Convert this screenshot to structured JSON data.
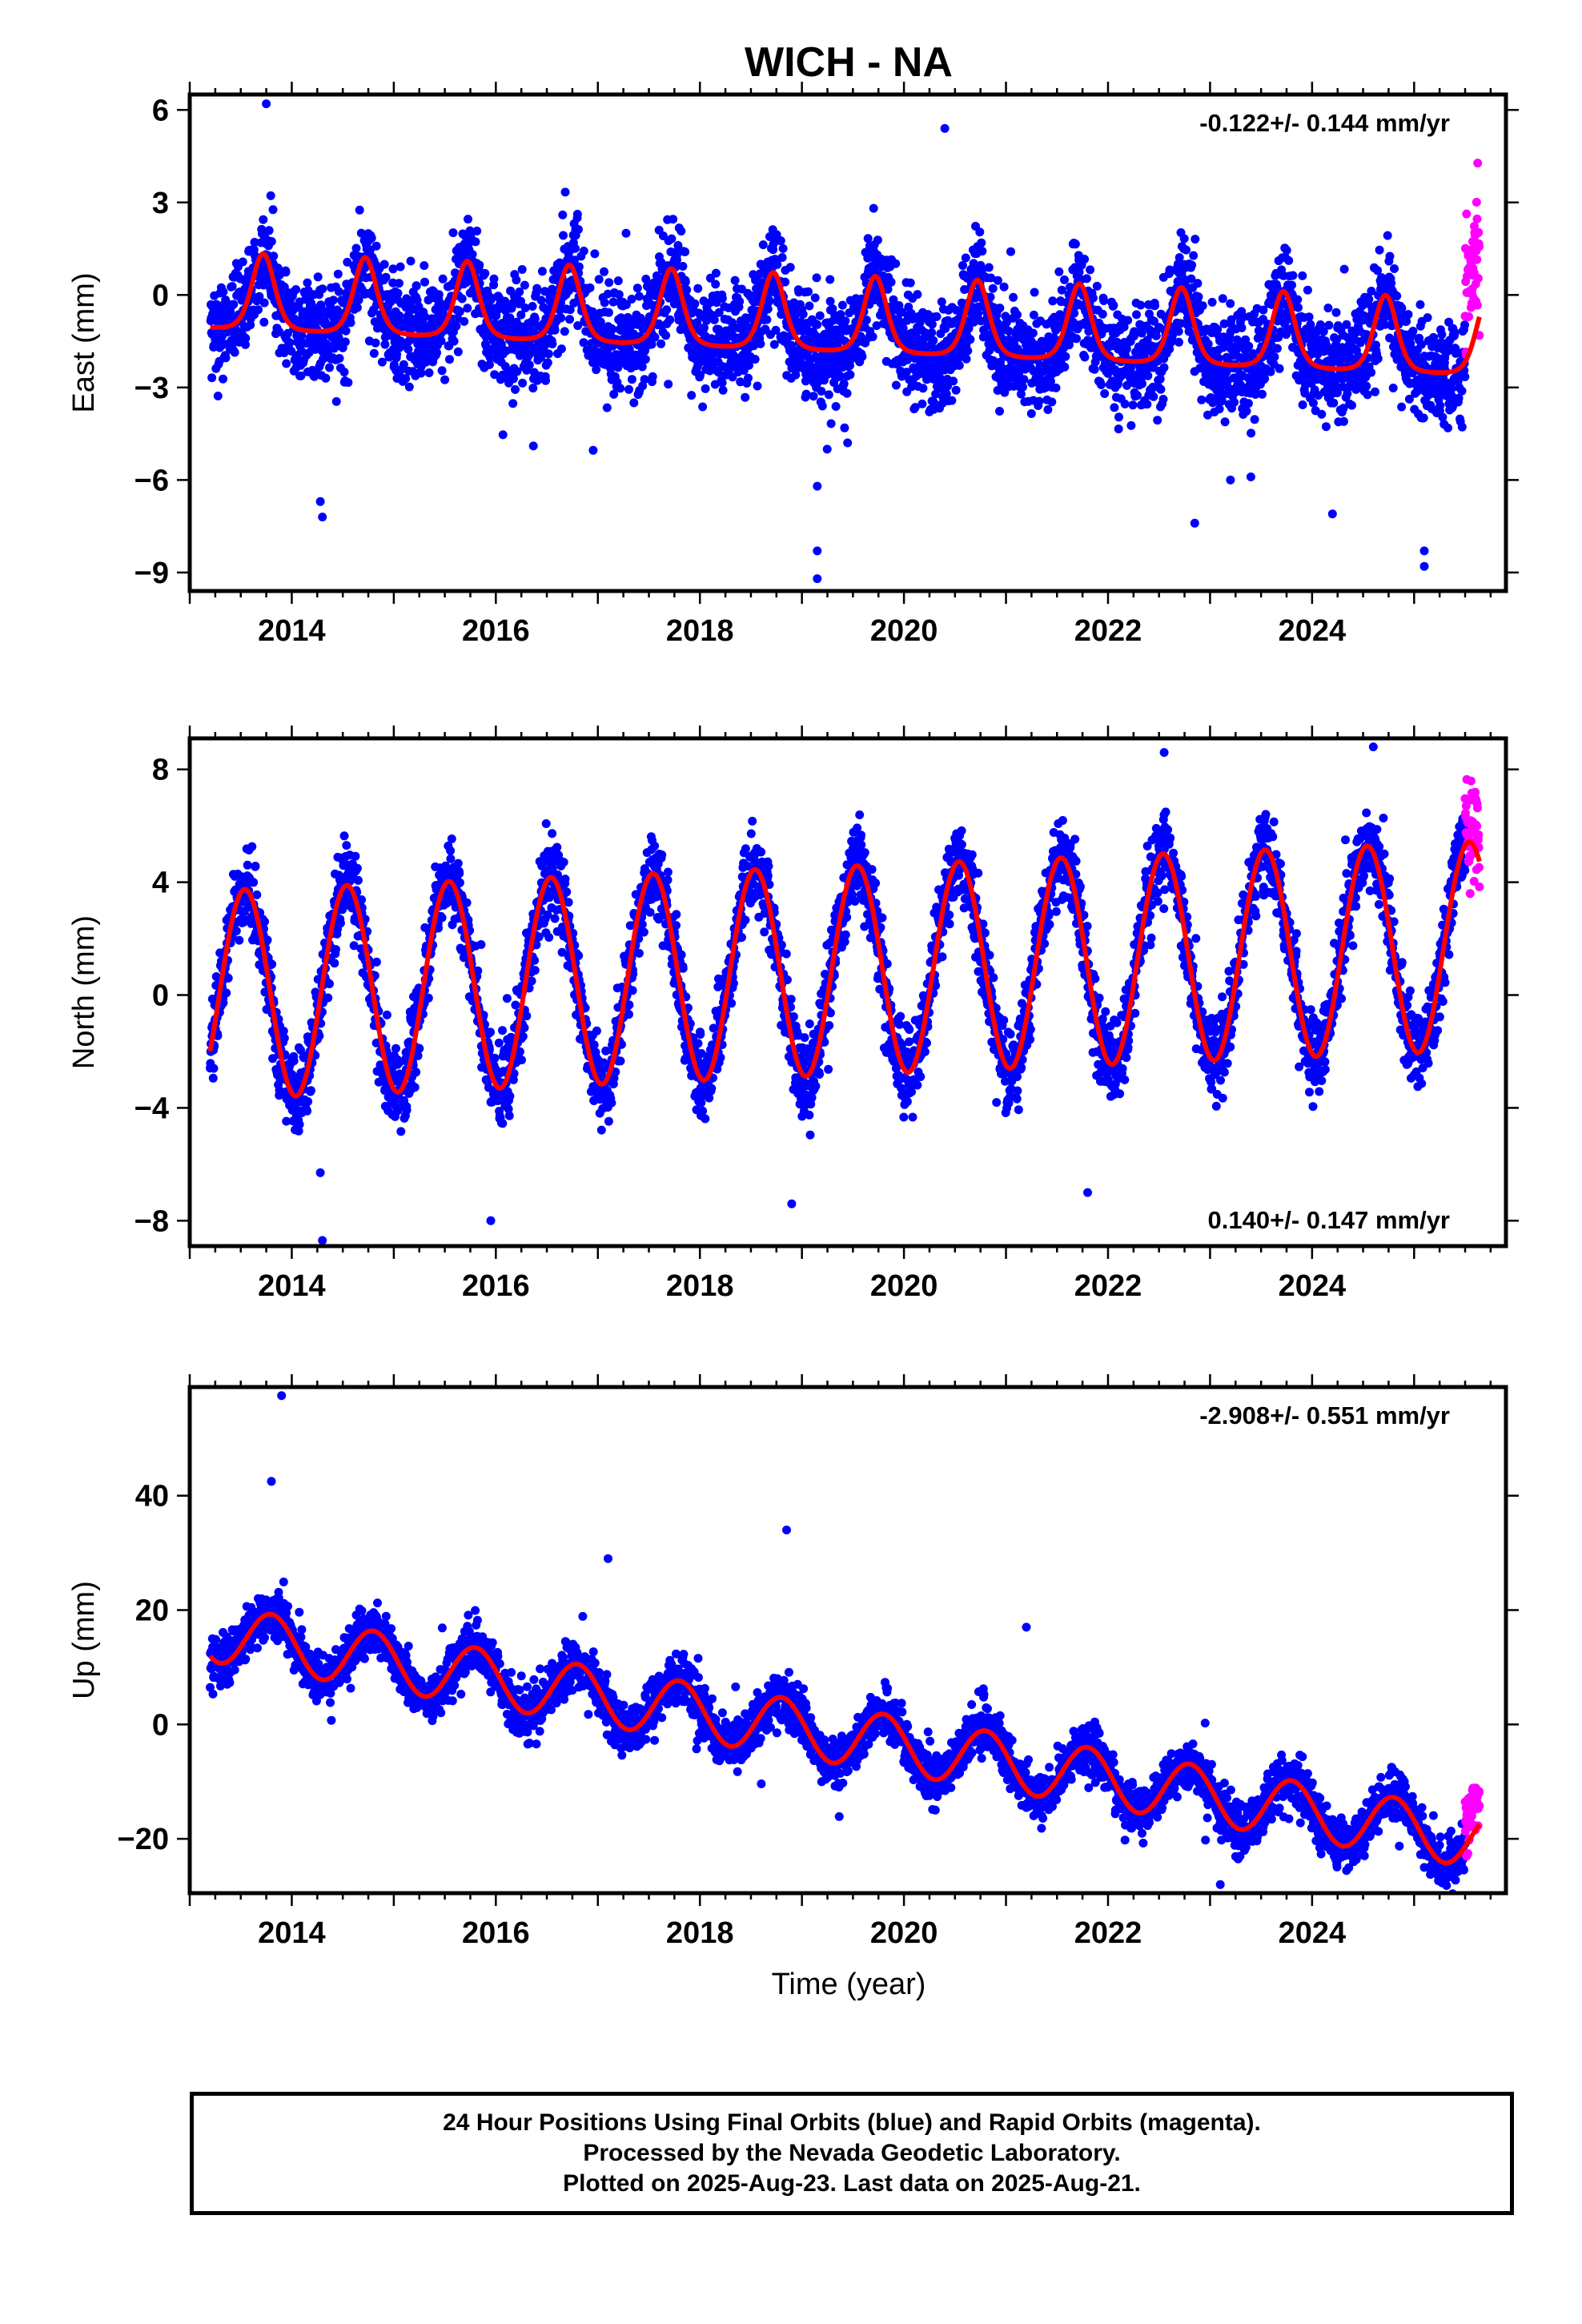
{
  "chart_data": {
    "type": "scatter",
    "title": "WICH - NA",
    "xlabel": "Time (year)",
    "xlim": [
      2013.0,
      2025.9
    ],
    "x_ticks": [
      2014,
      2016,
      2018,
      2020,
      2022,
      2024
    ],
    "x_tick_labels": [
      "2014",
      "2016",
      "2018",
      "2020",
      "2022",
      "2024"
    ],
    "data_start": 2013.2,
    "rapid_start": 2025.5,
    "data_end": 2025.64,
    "series_colors": {
      "final": "#0000ff",
      "rapid": "#ff00ff",
      "model": "#ff0000"
    },
    "panels": [
      {
        "ylabel": "East (mm)",
        "ylim": [
          -9.6,
          6.5
        ],
        "y_ticks": [
          -9,
          -6,
          -3,
          0,
          3,
          6
        ],
        "y_tick_labels": [
          "−9",
          "−6",
          "−3",
          "0",
          "3",
          "6"
        ],
        "rate_label": "-0.122+/- 0.144 mm/yr",
        "rate_position": "top-right",
        "model": {
          "offset": -0.2,
          "trend": -0.122,
          "amplitude": 1.6,
          "phase": 0.72,
          "steep": 2.2,
          "noise": 1.15,
          "min_decline": 0.08
        },
        "outliers": [
          [
            2013.75,
            6.2
          ],
          [
            2014.3,
            -7.2
          ],
          [
            2014.28,
            -6.7
          ],
          [
            2019.15,
            -9.2
          ],
          [
            2019.15,
            -8.3
          ],
          [
            2019.15,
            -6.2
          ],
          [
            2020.4,
            5.4
          ],
          [
            2022.85,
            -7.4
          ],
          [
            2023.2,
            -6.0
          ],
          [
            2025.1,
            -8.8
          ],
          [
            2025.1,
            -8.3
          ],
          [
            2024.2,
            -7.1
          ],
          [
            2023.4,
            -5.9
          ]
        ]
      },
      {
        "ylabel": "North (mm)",
        "ylim": [
          -8.9,
          9.1
        ],
        "y_ticks": [
          -8,
          -4,
          0,
          4,
          8
        ],
        "y_tick_labels": [
          "−8",
          "−4",
          "0",
          "4",
          "8"
        ],
        "rate_label": "0.140+/- 0.147 mm/yr",
        "rate_position": "bottom-right",
        "model": {
          "offset": 0.0,
          "trend": 0.14,
          "amplitude": 3.7,
          "phase": 0.54,
          "steep": 0.0,
          "noise": 1.0
        },
        "outliers": [
          [
            2014.3,
            -8.7
          ],
          [
            2014.28,
            -6.3
          ],
          [
            2015.95,
            -8.0
          ],
          [
            2018.9,
            -7.4
          ],
          [
            2021.8,
            -7.0
          ],
          [
            2022.55,
            8.6
          ],
          [
            2024.6,
            8.8
          ]
        ]
      },
      {
        "ylabel": "Up (mm)",
        "ylim": [
          -29.5,
          59.0
        ],
        "y_ticks": [
          -20,
          0,
          20,
          40
        ],
        "y_tick_labels": [
          "−20",
          "0",
          "20",
          "40"
        ],
        "rate_label": "-2.908+/- 0.551 mm/yr",
        "rate_position": "top-right",
        "model": {
          "offset": 16.0,
          "trend": -2.908,
          "amplitude": 5.0,
          "phase": 0.8,
          "steep": 0.0,
          "noise": 3.0
        },
        "outliers": [
          [
            2013.9,
            57.5
          ],
          [
            2013.8,
            42.5
          ],
          [
            2018.85,
            34.0
          ],
          [
            2017.1,
            29.0
          ],
          [
            2021.2,
            17.0
          ],
          [
            2023.1,
            -28.0
          ],
          [
            2025.1,
            -25.0
          ]
        ]
      }
    ]
  },
  "footer": {
    "line1": "24 Hour Positions Using Final Orbits (blue) and Rapid Orbits (magenta).",
    "line2": "Processed by the Nevada Geodetic Laboratory.",
    "line3": "Plotted on 2025-Aug-23. Last data on 2025-Aug-21."
  }
}
